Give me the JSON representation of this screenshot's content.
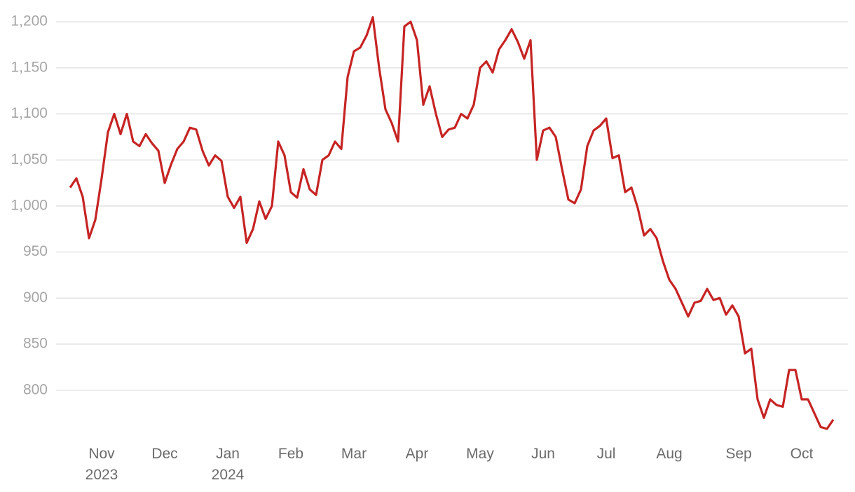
{
  "chart_data": {
    "type": "line",
    "categories": [
      null,
      null,
      null,
      null,
      null,
      "Nov 2023",
      null,
      null,
      null,
      null,
      null,
      null,
      null,
      null,
      null,
      "Dec",
      null,
      null,
      null,
      null,
      null,
      null,
      null,
      null,
      null,
      "Jan 2024",
      null,
      null,
      null,
      null,
      null,
      null,
      null,
      null,
      null,
      "Feb",
      null,
      null,
      null,
      null,
      null,
      null,
      null,
      null,
      null,
      "Mar",
      null,
      null,
      null,
      null,
      null,
      null,
      null,
      null,
      null,
      "Apr",
      null,
      null,
      null,
      null,
      null,
      null,
      null,
      null,
      null,
      "May",
      null,
      null,
      null,
      null,
      null,
      null,
      null,
      null,
      null,
      "Jun",
      null,
      null,
      null,
      null,
      null,
      null,
      null,
      null,
      null,
      "Jul",
      null,
      null,
      null,
      null,
      null,
      null,
      null,
      null,
      null,
      "Aug",
      null,
      null,
      null,
      null,
      null,
      null,
      null,
      null,
      null,
      null,
      "Sep",
      null,
      null,
      null,
      null,
      null,
      null,
      null,
      null,
      null,
      "Oct",
      null,
      null,
      null,
      null,
      null
    ],
    "series": [
      {
        "color": "#c62424",
        "values": [
          1020,
          1030,
          1010,
          965,
          985,
          1030,
          1080,
          1100,
          1078,
          1100,
          1070,
          1065,
          1078,
          1068,
          1060,
          1025,
          1045,
          1062,
          1070,
          1085,
          1083,
          1060,
          1044,
          1055,
          1049,
          1010,
          998,
          1010,
          960,
          975,
          1005,
          986,
          1000,
          1070,
          1055,
          1015,
          1009,
          1040,
          1018,
          1012,
          1050,
          1055,
          1070,
          1062,
          1140,
          1168,
          1172,
          1185,
          1205,
          1150,
          1105,
          1090,
          1070,
          1195,
          1200,
          1180,
          1110,
          1130,
          1100,
          1075,
          1083,
          1085,
          1100,
          1095,
          1110,
          1150,
          1157,
          1145,
          1170,
          1180,
          1192,
          1178,
          1160,
          1180,
          1050,
          1082,
          1085,
          1075,
          1040,
          1007,
          1003,
          1018,
          1065,
          1082,
          1087,
          1095,
          1052,
          1055,
          1015,
          1020,
          998,
          968,
          975,
          965,
          940,
          920,
          910,
          895,
          880,
          895,
          897,
          910,
          898,
          900,
          882,
          892,
          880,
          840,
          845,
          790,
          770,
          790,
          784,
          782,
          822,
          822,
          790,
          790,
          775,
          760,
          758,
          768
        ]
      }
    ],
    "ylim": [
      745,
      1210
    ],
    "yticks": [
      800,
      850,
      900,
      950,
      {
        "value": 1000,
        "label": "1,000"
      },
      {
        "value": 1050,
        "label": "1,050"
      },
      {
        "value": 1100,
        "label": "1,100"
      },
      {
        "value": 1150,
        "label": "1,150"
      },
      {
        "value": 1200,
        "label": "1,200"
      }
    ],
    "grid": true
  }
}
